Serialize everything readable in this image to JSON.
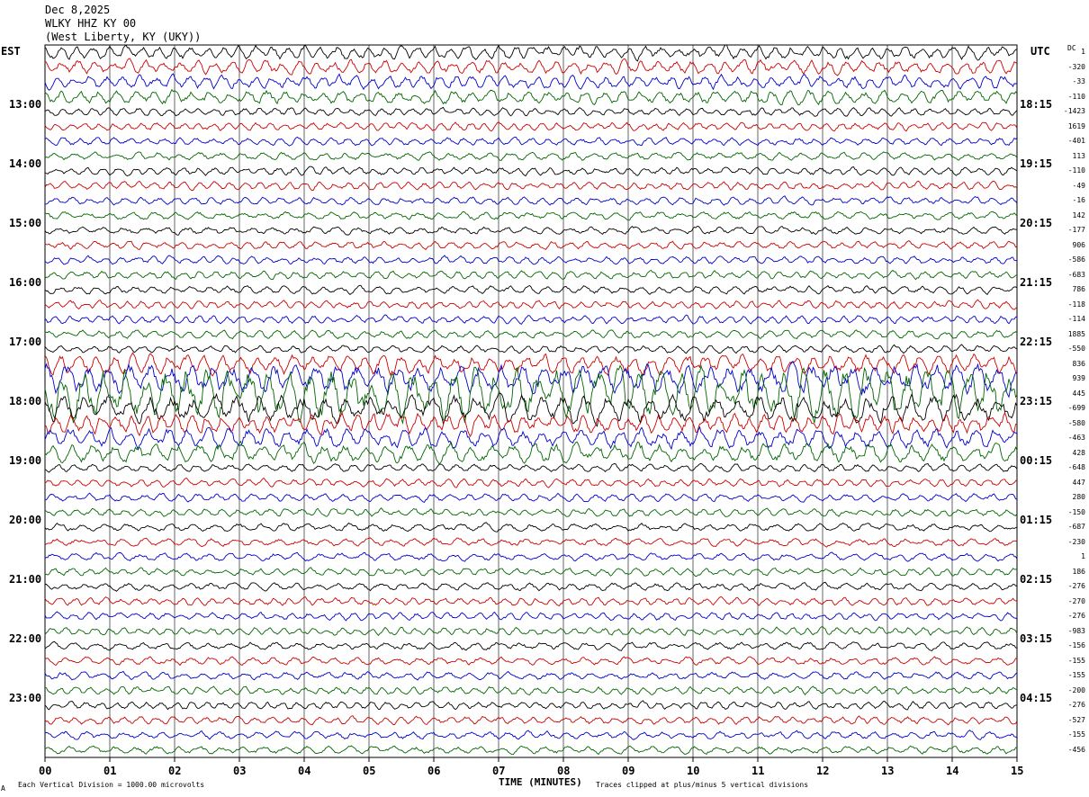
{
  "header": {
    "date": "Dec 8,2025",
    "station": "WLKY HHZ KY 00",
    "location": "(West Liberty, KY (UKY))"
  },
  "axes": {
    "left_zone": "EST",
    "right_zone": "UTC",
    "dc_label": "DC",
    "x_title": "TIME (MINUTES)",
    "x_ticks": [
      "00",
      "01",
      "02",
      "03",
      "04",
      "05",
      "06",
      "07",
      "08",
      "09",
      "10",
      "11",
      "12",
      "13",
      "14",
      "15"
    ],
    "left_times": [
      "13:00",
      "14:00",
      "15:00",
      "16:00",
      "17:00",
      "18:00",
      "19:00",
      "20:00",
      "21:00",
      "22:00",
      "23:00"
    ],
    "right_times": [
      "18:15",
      "19:15",
      "20:15",
      "21:15",
      "22:15",
      "23:15",
      "00:15",
      "01:15",
      "02:15",
      "03:15",
      "04:15"
    ]
  },
  "footer": {
    "scale_note": "Each Vertical Division = 1000.00 microvolts",
    "clip_note": "Traces clipped at plus/minus 5 vertical divisions",
    "corner_mark": "A"
  },
  "colors": {
    "trace_cycle": [
      "#000000",
      "#cc0000",
      "#0000cc",
      "#006600"
    ],
    "grid": "#000000"
  },
  "chart_data": {
    "type": "line",
    "description_kind": "helicorder",
    "x_range_minutes": [
      0,
      15
    ],
    "line_count": 48,
    "dc_offsets": [
      "1",
      "-320",
      "-33",
      "-110",
      "-1423",
      "1619",
      "-401",
      "113",
      "-110",
      "-49",
      "-16",
      "142",
      "-177",
      "906",
      "-586",
      "-683",
      "786",
      "-118",
      "-114",
      "1885",
      "-550",
      "836",
      "939",
      "445",
      "-699",
      "-580",
      "-463",
      "428",
      "-648",
      "447",
      "280",
      "-150",
      "-687",
      "-230",
      "1",
      "186",
      "-276",
      "-270",
      "-276",
      "-983",
      "-156",
      "-155",
      "-155",
      "-200",
      "-276",
      "-527",
      "-155",
      "-456"
    ],
    "event_hours": [
      "17:00",
      "18:00"
    ],
    "clip_divisions": 5,
    "units_per_division": "1000.00 microvolts"
  }
}
